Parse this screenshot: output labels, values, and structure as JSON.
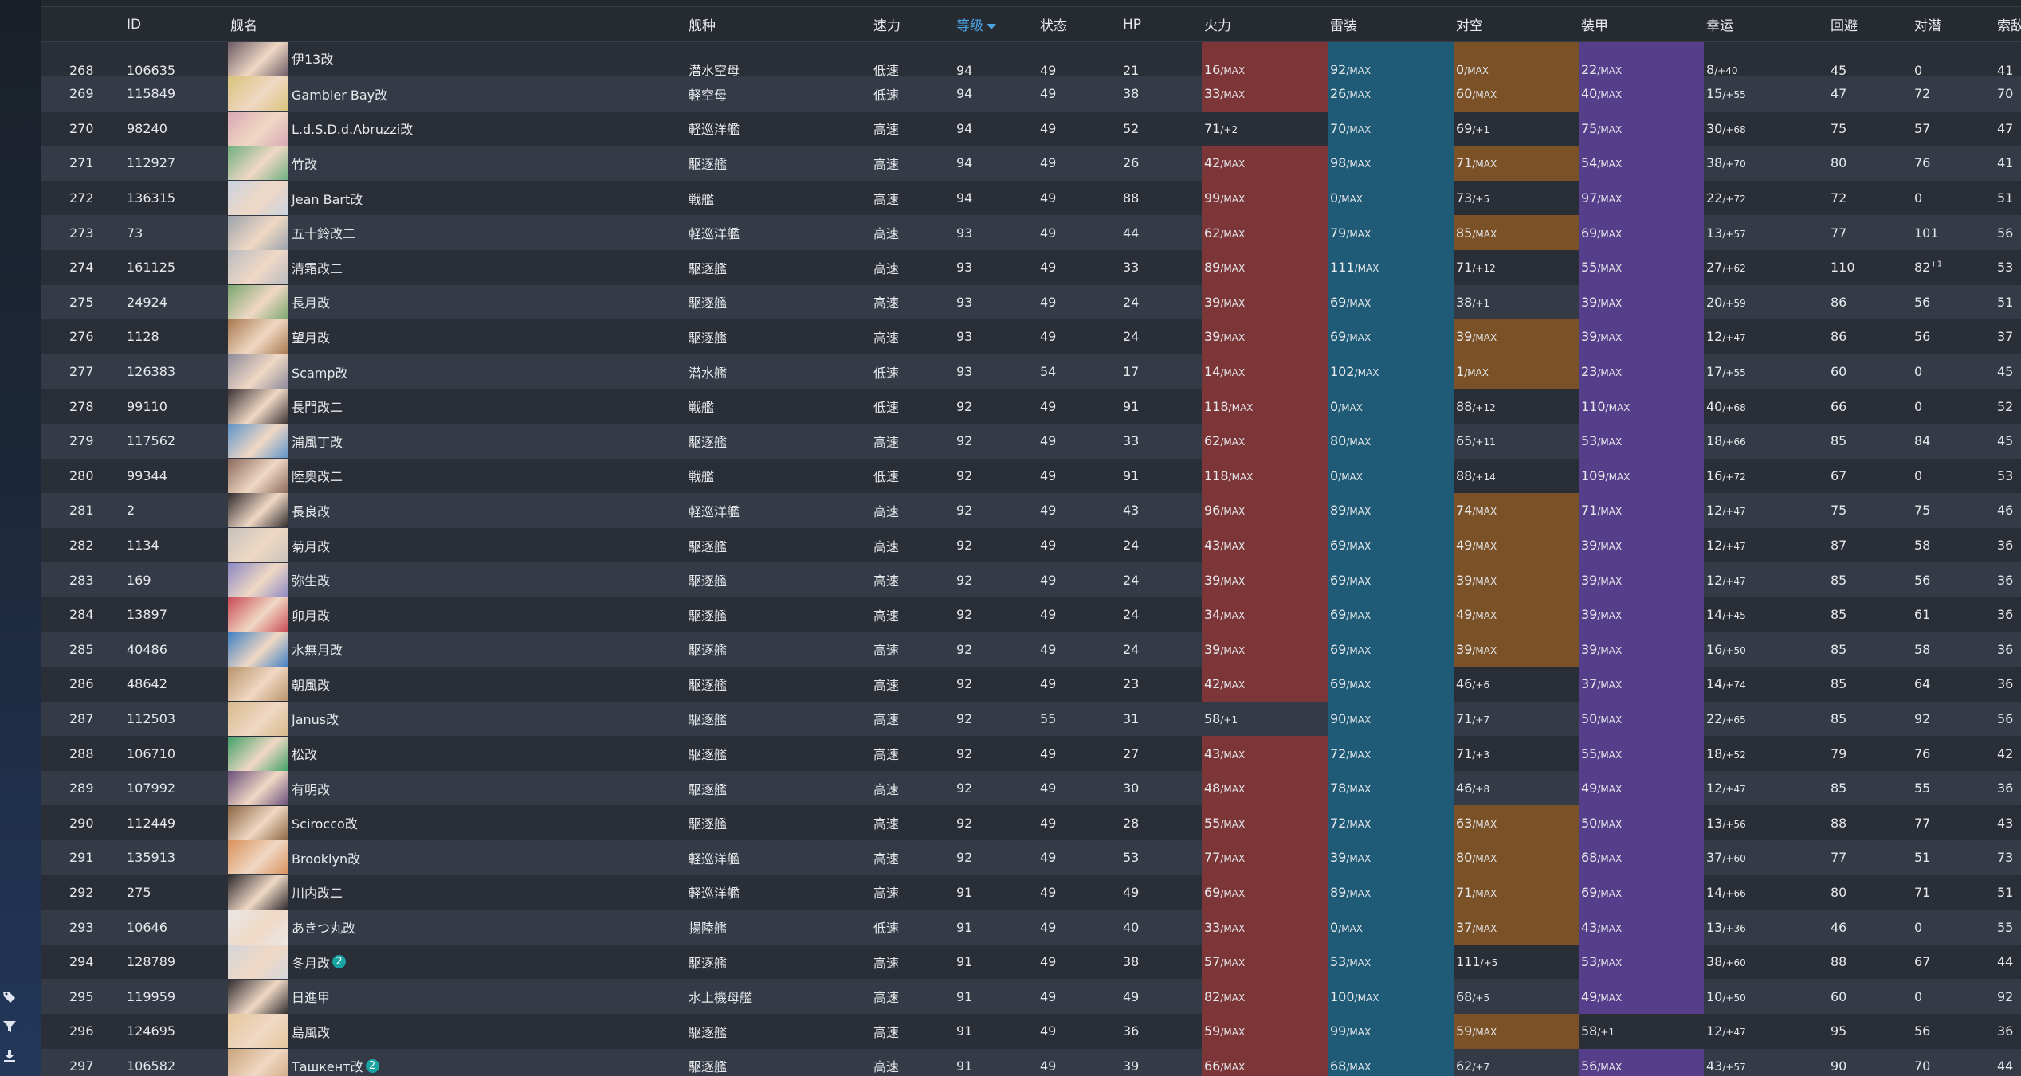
{
  "columns": [
    "",
    "ID",
    "舰名",
    "舰种",
    "速力",
    "等级",
    "状态",
    "HP",
    "火力",
    "雷装",
    "对空",
    "装甲",
    "幸运",
    "回避",
    "对潜",
    "索敌"
  ],
  "sorted_column": "等级",
  "sidebar": {
    "tools": [
      "tag-icon",
      "filter-icon",
      "download-icon"
    ]
  },
  "rows": [
    {
      "no": "268",
      "id": "106635",
      "name": "伊13改",
      "type": "潜水空母",
      "speed": "低速",
      "lv": "94",
      "cond": "49",
      "hp": "21",
      "fp": "16",
      "fp_s": "MAX",
      "tp": "92",
      "tp_s": "MAX",
      "aa": "0",
      "aa_s": "MAX",
      "ar": "22",
      "ar_s": "MAX",
      "luck": "8",
      "luck_s": "+40",
      "ev": "45",
      "asw": "0",
      "los": "41",
      "fp_c": true,
      "tp_c": true,
      "aa_c": true,
      "ar_c": true,
      "color": "#6d5a66"
    },
    {
      "no": "269",
      "id": "115849",
      "name": "Gambier Bay改",
      "type": "軽空母",
      "speed": "低速",
      "lv": "94",
      "cond": "49",
      "hp": "38",
      "fp": "33",
      "fp_s": "MAX",
      "tp": "26",
      "tp_s": "MAX",
      "aa": "60",
      "aa_s": "MAX",
      "ar": "40",
      "ar_s": "MAX",
      "luck": "15",
      "luck_s": "+55",
      "ev": "47",
      "asw": "72",
      "los": "70",
      "fp_c": true,
      "tp_c": true,
      "aa_c": true,
      "ar_c": true,
      "color": "#d8c37a"
    },
    {
      "no": "270",
      "id": "98240",
      "name": "L.d.S.D.d.Abruzzi改",
      "type": "軽巡洋艦",
      "speed": "高速",
      "lv": "94",
      "cond": "49",
      "hp": "52",
      "fp": "71",
      "fp_s": "+2",
      "tp": "70",
      "tp_s": "MAX",
      "aa": "69",
      "aa_s": "+1",
      "ar": "75",
      "ar_s": "MAX",
      "luck": "30",
      "luck_s": "+68",
      "ev": "75",
      "asw": "57",
      "los": "47",
      "fp_c": false,
      "tp_c": true,
      "aa_c": false,
      "ar_c": true,
      "color": "#d9a7b5"
    },
    {
      "no": "271",
      "id": "112927",
      "name": "竹改",
      "type": "駆逐艦",
      "speed": "高速",
      "lv": "94",
      "cond": "49",
      "hp": "26",
      "fp": "42",
      "fp_s": "MAX",
      "tp": "98",
      "tp_s": "MAX",
      "aa": "71",
      "aa_s": "MAX",
      "ar": "54",
      "ar_s": "MAX",
      "luck": "38",
      "luck_s": "+70",
      "ev": "80",
      "asw": "76",
      "los": "41",
      "fp_c": true,
      "tp_c": true,
      "aa_c": true,
      "ar_c": true,
      "color": "#6fb07e"
    },
    {
      "no": "272",
      "id": "136315",
      "name": "Jean Bart改",
      "type": "戦艦",
      "speed": "高速",
      "lv": "94",
      "cond": "49",
      "hp": "88",
      "fp": "99",
      "fp_s": "MAX",
      "tp": "0",
      "tp_s": "MAX",
      "aa": "73",
      "aa_s": "+5",
      "ar": "97",
      "ar_s": "MAX",
      "luck": "22",
      "luck_s": "+72",
      "ev": "72",
      "asw": "0",
      "los": "51",
      "fp_c": true,
      "tp_c": true,
      "aa_c": false,
      "ar_c": true,
      "color": "#c9d3e0"
    },
    {
      "no": "273",
      "id": "73",
      "name": "五十鈴改二",
      "type": "軽巡洋艦",
      "speed": "高速",
      "lv": "93",
      "cond": "49",
      "hp": "44",
      "fp": "62",
      "fp_s": "MAX",
      "tp": "79",
      "tp_s": "MAX",
      "aa": "85",
      "aa_s": "MAX",
      "ar": "69",
      "ar_s": "MAX",
      "luck": "13",
      "luck_s": "+57",
      "ev": "77",
      "asw": "101",
      "los": "56",
      "fp_c": true,
      "tp_c": true,
      "aa_c": true,
      "ar_c": true,
      "color": "#9aa3ad"
    },
    {
      "no": "274",
      "id": "161125",
      "name": "清霜改二",
      "type": "駆逐艦",
      "speed": "高速",
      "lv": "93",
      "cond": "49",
      "hp": "33",
      "fp": "89",
      "fp_s": "MAX",
      "tp": "111",
      "tp_s": "MAX",
      "aa": "71",
      "aa_s": "+12",
      "ar": "55",
      "ar_s": "MAX",
      "luck": "27",
      "luck_s": "+62",
      "ev": "110",
      "asw": "82",
      "asw_sup": "+1",
      "los": "53",
      "fp_c": true,
      "tp_c": true,
      "aa_c": false,
      "ar_c": true,
      "color": "#b8bcc2"
    },
    {
      "no": "275",
      "id": "24924",
      "name": "長月改",
      "type": "駆逐艦",
      "speed": "高速",
      "lv": "93",
      "cond": "49",
      "hp": "24",
      "fp": "39",
      "fp_s": "MAX",
      "tp": "69",
      "tp_s": "MAX",
      "aa": "38",
      "aa_s": "+1",
      "ar": "39",
      "ar_s": "MAX",
      "luck": "20",
      "luck_s": "+59",
      "ev": "86",
      "asw": "56",
      "los": "51",
      "fp_c": true,
      "tp_c": true,
      "aa_c": false,
      "ar_c": true,
      "color": "#7aa66e"
    },
    {
      "no": "276",
      "id": "1128",
      "name": "望月改",
      "type": "駆逐艦",
      "speed": "高速",
      "lv": "93",
      "cond": "49",
      "hp": "24",
      "fp": "39",
      "fp_s": "MAX",
      "tp": "69",
      "tp_s": "MAX",
      "aa": "39",
      "aa_s": "MAX",
      "ar": "39",
      "ar_s": "MAX",
      "luck": "12",
      "luck_s": "+47",
      "ev": "86",
      "asw": "56",
      "los": "37",
      "fp_c": true,
      "tp_c": true,
      "aa_c": true,
      "ar_c": true,
      "color": "#a8794f"
    },
    {
      "no": "277",
      "id": "126383",
      "name": "Scamp改",
      "type": "潜水艦",
      "speed": "低速",
      "lv": "93",
      "cond": "54",
      "hp": "17",
      "fp": "14",
      "fp_s": "MAX",
      "tp": "102",
      "tp_s": "MAX",
      "aa": "1",
      "aa_s": "MAX",
      "ar": "23",
      "ar_s": "MAX",
      "luck": "17",
      "luck_s": "+55",
      "ev": "60",
      "asw": "0",
      "los": "45",
      "fp_c": true,
      "tp_c": true,
      "aa_c": true,
      "ar_c": true,
      "color": "#8c8a9b"
    },
    {
      "no": "278",
      "id": "99110",
      "name": "長門改二",
      "type": "戦艦",
      "speed": "低速",
      "lv": "92",
      "cond": "49",
      "hp": "91",
      "fp": "118",
      "fp_s": "MAX",
      "tp": "0",
      "tp_s": "MAX",
      "aa": "88",
      "aa_s": "+12",
      "ar": "110",
      "ar_s": "MAX",
      "luck": "40",
      "luck_s": "+68",
      "ev": "66",
      "asw": "0",
      "los": "52",
      "fp_c": true,
      "tp_c": true,
      "aa_c": false,
      "ar_c": true,
      "color": "#3b3336"
    },
    {
      "no": "279",
      "id": "117562",
      "name": "浦風丁改",
      "type": "駆逐艦",
      "speed": "高速",
      "lv": "92",
      "cond": "49",
      "hp": "33",
      "fp": "62",
      "fp_s": "MAX",
      "tp": "80",
      "tp_s": "MAX",
      "aa": "65",
      "aa_s": "+11",
      "ar": "53",
      "ar_s": "MAX",
      "luck": "18",
      "luck_s": "+66",
      "ev": "85",
      "asw": "84",
      "los": "45",
      "fp_c": true,
      "tp_c": true,
      "aa_c": false,
      "ar_c": true,
      "color": "#5b93c9"
    },
    {
      "no": "280",
      "id": "99344",
      "name": "陸奥改二",
      "type": "戦艦",
      "speed": "低速",
      "lv": "92",
      "cond": "49",
      "hp": "91",
      "fp": "118",
      "fp_s": "MAX",
      "tp": "0",
      "tp_s": "MAX",
      "aa": "88",
      "aa_s": "+14",
      "ar": "109",
      "ar_s": "MAX",
      "luck": "16",
      "luck_s": "+72",
      "ev": "67",
      "asw": "0",
      "los": "53",
      "fp_c": true,
      "tp_c": true,
      "aa_c": false,
      "ar_c": true,
      "color": "#8a6a5c"
    },
    {
      "no": "281",
      "id": "2",
      "name": "長良改",
      "type": "軽巡洋艦",
      "speed": "高速",
      "lv": "92",
      "cond": "49",
      "hp": "43",
      "fp": "96",
      "fp_s": "MAX",
      "tp": "89",
      "tp_s": "MAX",
      "aa": "74",
      "aa_s": "MAX",
      "ar": "71",
      "ar_s": "MAX",
      "luck": "12",
      "luck_s": "+47",
      "ev": "75",
      "asw": "75",
      "los": "46",
      "fp_c": true,
      "tp_c": true,
      "aa_c": true,
      "ar_c": true,
      "color": "#2e2a2c"
    },
    {
      "no": "282",
      "id": "1134",
      "name": "菊月改",
      "type": "駆逐艦",
      "speed": "高速",
      "lv": "92",
      "cond": "49",
      "hp": "24",
      "fp": "43",
      "fp_s": "MAX",
      "tp": "69",
      "tp_s": "MAX",
      "aa": "49",
      "aa_s": "MAX",
      "ar": "39",
      "ar_s": "MAX",
      "luck": "12",
      "luck_s": "+47",
      "ev": "87",
      "asw": "58",
      "los": "36",
      "fp_c": true,
      "tp_c": true,
      "aa_c": true,
      "ar_c": true,
      "color": "#c5c2bb"
    },
    {
      "no": "283",
      "id": "169",
      "name": "弥生改",
      "type": "駆逐艦",
      "speed": "高速",
      "lv": "92",
      "cond": "49",
      "hp": "24",
      "fp": "39",
      "fp_s": "MAX",
      "tp": "69",
      "tp_s": "MAX",
      "aa": "39",
      "aa_s": "MAX",
      "ar": "39",
      "ar_s": "MAX",
      "luck": "12",
      "luck_s": "+47",
      "ev": "85",
      "asw": "56",
      "los": "36",
      "fp_c": true,
      "tp_c": true,
      "aa_c": true,
      "ar_c": true,
      "color": "#8a88c4"
    },
    {
      "no": "284",
      "id": "13897",
      "name": "卯月改",
      "type": "駆逐艦",
      "speed": "高速",
      "lv": "92",
      "cond": "49",
      "hp": "24",
      "fp": "34",
      "fp_s": "MAX",
      "tp": "69",
      "tp_s": "MAX",
      "aa": "49",
      "aa_s": "MAX",
      "ar": "39",
      "ar_s": "MAX",
      "luck": "14",
      "luck_s": "+45",
      "ev": "85",
      "asw": "61",
      "los": "36",
      "fp_c": true,
      "tp_c": true,
      "aa_c": true,
      "ar_c": true,
      "color": "#c94a58"
    },
    {
      "no": "285",
      "id": "40486",
      "name": "水無月改",
      "type": "駆逐艦",
      "speed": "高速",
      "lv": "92",
      "cond": "49",
      "hp": "24",
      "fp": "39",
      "fp_s": "MAX",
      "tp": "69",
      "tp_s": "MAX",
      "aa": "39",
      "aa_s": "MAX",
      "ar": "39",
      "ar_s": "MAX",
      "luck": "16",
      "luck_s": "+50",
      "ev": "85",
      "asw": "58",
      "los": "36",
      "fp_c": true,
      "tp_c": true,
      "aa_c": true,
      "ar_c": true,
      "color": "#3f7fc4"
    },
    {
      "no": "286",
      "id": "48642",
      "name": "朝風改",
      "type": "駆逐艦",
      "speed": "高速",
      "lv": "92",
      "cond": "49",
      "hp": "23",
      "fp": "42",
      "fp_s": "MAX",
      "tp": "69",
      "tp_s": "MAX",
      "aa": "46",
      "aa_s": "+6",
      "ar": "37",
      "ar_s": "MAX",
      "luck": "14",
      "luck_s": "+74",
      "ev": "85",
      "asw": "64",
      "los": "36",
      "fp_c": true,
      "tp_c": true,
      "aa_c": false,
      "ar_c": true,
      "color": "#b8936a"
    },
    {
      "no": "287",
      "id": "112503",
      "name": "Janus改",
      "type": "駆逐艦",
      "speed": "高速",
      "lv": "92",
      "cond": "55",
      "hp": "31",
      "fp": "58",
      "fp_s": "+1",
      "tp": "90",
      "tp_s": "MAX",
      "aa": "71",
      "aa_s": "+7",
      "ar": "50",
      "ar_s": "MAX",
      "luck": "22",
      "luck_s": "+65",
      "ev": "85",
      "asw": "92",
      "los": "56",
      "fp_c": false,
      "tp_c": true,
      "aa_c": false,
      "ar_c": true,
      "color": "#d6b98a"
    },
    {
      "no": "288",
      "id": "106710",
      "name": "松改",
      "type": "駆逐艦",
      "speed": "高速",
      "lv": "92",
      "cond": "49",
      "hp": "27",
      "fp": "43",
      "fp_s": "MAX",
      "tp": "72",
      "tp_s": "MAX",
      "aa": "71",
      "aa_s": "+3",
      "ar": "55",
      "ar_s": "MAX",
      "luck": "18",
      "luck_s": "+52",
      "ev": "79",
      "asw": "76",
      "los": "42",
      "fp_c": true,
      "tp_c": true,
      "aa_c": false,
      "ar_c": true,
      "color": "#3fa068"
    },
    {
      "no": "289",
      "id": "107992",
      "name": "有明改",
      "type": "駆逐艦",
      "speed": "高速",
      "lv": "92",
      "cond": "49",
      "hp": "30",
      "fp": "48",
      "fp_s": "MAX",
      "tp": "78",
      "tp_s": "MAX",
      "aa": "46",
      "aa_s": "+8",
      "ar": "49",
      "ar_s": "MAX",
      "luck": "12",
      "luck_s": "+47",
      "ev": "85",
      "asw": "55",
      "los": "36",
      "fp_c": true,
      "tp_c": true,
      "aa_c": false,
      "ar_c": true,
      "color": "#6a4e7a"
    },
    {
      "no": "290",
      "id": "112449",
      "name": "Scirocco改",
      "type": "駆逐艦",
      "speed": "高速",
      "lv": "92",
      "cond": "49",
      "hp": "28",
      "fp": "55",
      "fp_s": "MAX",
      "tp": "72",
      "tp_s": "MAX",
      "aa": "63",
      "aa_s": "MAX",
      "ar": "50",
      "ar_s": "MAX",
      "luck": "13",
      "luck_s": "+56",
      "ev": "88",
      "asw": "77",
      "los": "43",
      "fp_c": true,
      "tp_c": true,
      "aa_c": true,
      "ar_c": true,
      "color": "#8a6542"
    },
    {
      "no": "291",
      "id": "135913",
      "name": "Brooklyn改",
      "type": "軽巡洋艦",
      "speed": "高速",
      "lv": "92",
      "cond": "49",
      "hp": "53",
      "fp": "77",
      "fp_s": "MAX",
      "tp": "39",
      "tp_s": "MAX",
      "aa": "80",
      "aa_s": "MAX",
      "ar": "68",
      "ar_s": "MAX",
      "luck": "37",
      "luck_s": "+60",
      "ev": "77",
      "asw": "51",
      "los": "73",
      "fp_c": true,
      "tp_c": true,
      "aa_c": true,
      "ar_c": true,
      "color": "#d98f5a"
    },
    {
      "no": "292",
      "id": "275",
      "name": "川内改二",
      "type": "軽巡洋艦",
      "speed": "高速",
      "lv": "91",
      "cond": "49",
      "hp": "49",
      "fp": "69",
      "fp_s": "MAX",
      "tp": "89",
      "tp_s": "MAX",
      "aa": "71",
      "aa_s": "MAX",
      "ar": "69",
      "ar_s": "MAX",
      "luck": "14",
      "luck_s": "+66",
      "ev": "80",
      "asw": "71",
      "los": "51",
      "fp_c": true,
      "tp_c": true,
      "aa_c": true,
      "ar_c": true,
      "color": "#2c2a2e"
    },
    {
      "no": "293",
      "id": "10646",
      "name": "あきつ丸改",
      "type": "揚陸艦",
      "speed": "低速",
      "lv": "91",
      "cond": "49",
      "hp": "40",
      "fp": "33",
      "fp_s": "MAX",
      "tp": "0",
      "tp_s": "MAX",
      "aa": "37",
      "aa_s": "MAX",
      "ar": "43",
      "ar_s": "MAX",
      "luck": "13",
      "luck_s": "+36",
      "ev": "46",
      "asw": "0",
      "los": "55",
      "fp_c": true,
      "tp_c": true,
      "aa_c": true,
      "ar_c": true,
      "color": "#e8e8e8"
    },
    {
      "no": "294",
      "id": "128789",
      "name": "冬月改",
      "badge": "2",
      "type": "駆逐艦",
      "speed": "高速",
      "lv": "91",
      "cond": "49",
      "hp": "38",
      "fp": "57",
      "fp_s": "MAX",
      "tp": "53",
      "tp_s": "MAX",
      "aa": "111",
      "aa_s": "+5",
      "ar": "53",
      "ar_s": "MAX",
      "luck": "38",
      "luck_s": "+60",
      "ev": "88",
      "asw": "67",
      "los": "44",
      "fp_c": true,
      "tp_c": true,
      "aa_c": false,
      "ar_c": true,
      "color": "#d3d6dc"
    },
    {
      "no": "295",
      "id": "119959",
      "name": "日進甲",
      "type": "水上機母艦",
      "speed": "高速",
      "lv": "91",
      "cond": "49",
      "hp": "49",
      "fp": "82",
      "fp_s": "MAX",
      "tp": "100",
      "tp_s": "MAX",
      "aa": "68",
      "aa_s": "+5",
      "ar": "49",
      "ar_s": "MAX",
      "luck": "10",
      "luck_s": "+50",
      "ev": "60",
      "asw": "0",
      "los": "92",
      "fp_c": true,
      "tp_c": true,
      "aa_c": false,
      "ar_c": true,
      "color": "#2f2b2f"
    },
    {
      "no": "296",
      "id": "124695",
      "name": "島風改",
      "type": "駆逐艦",
      "speed": "高速",
      "lv": "91",
      "cond": "49",
      "hp": "36",
      "fp": "59",
      "fp_s": "MAX",
      "tp": "99",
      "tp_s": "MAX",
      "aa": "59",
      "aa_s": "MAX",
      "ar": "58",
      "ar_s": "+1",
      "luck": "12",
      "luck_s": "+47",
      "ev": "95",
      "asw": "56",
      "los": "36",
      "fp_c": true,
      "tp_c": true,
      "aa_c": true,
      "ar_c": false,
      "color": "#e3c79a"
    },
    {
      "no": "297",
      "id": "106582",
      "name": "Ташкент改",
      "badge": "2",
      "type": "駆逐艦",
      "speed": "高速",
      "lv": "91",
      "cond": "49",
      "hp": "39",
      "fp": "66",
      "fp_s": "MAX",
      "tp": "68",
      "tp_s": "MAX",
      "aa": "62",
      "aa_s": "+7",
      "ar": "56",
      "ar_s": "MAX",
      "luck": "43",
      "luck_s": "+57",
      "ev": "90",
      "asw": "70",
      "los": "44",
      "fp_c": true,
      "tp_c": true,
      "aa_c": false,
      "ar_c": true,
      "color": "#c9a37c"
    }
  ]
}
